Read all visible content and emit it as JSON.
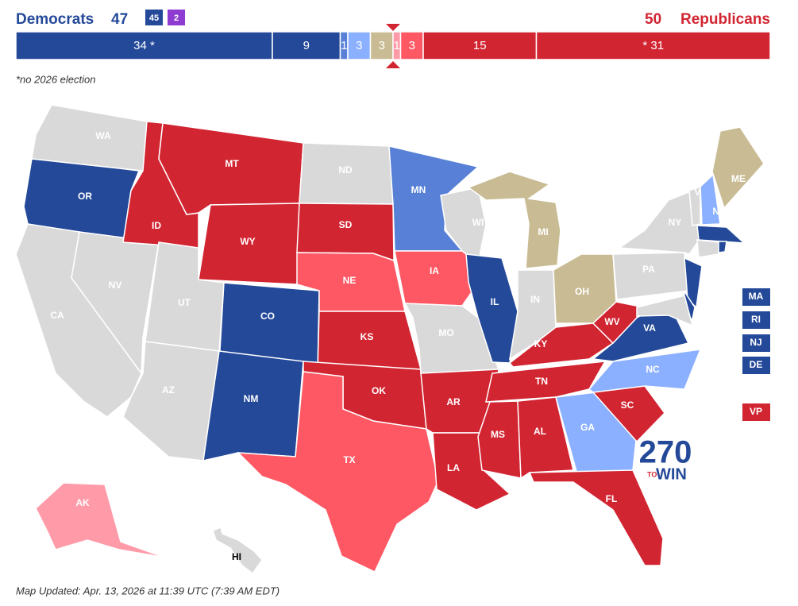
{
  "header": {
    "dem_label": "Democrats",
    "dem_total": 47,
    "dem_badges": [
      {
        "text": "45",
        "color": "#244999"
      },
      {
        "text": "2",
        "color": "#8e3bd1"
      }
    ],
    "rep_total": 50,
    "rep_label": "Republicans"
  },
  "bar": {
    "segments": [
      {
        "value": 34,
        "label": "34 *",
        "color": "#244999"
      },
      {
        "value": 9,
        "label": "9",
        "color": "#244999"
      },
      {
        "value": 1,
        "label": "1",
        "color": "#5780d6"
      },
      {
        "value": 3,
        "label": "3",
        "color": "#8bb0ff"
      },
      {
        "value": 3,
        "label": "3",
        "color": "#c9bc94"
      },
      {
        "value": 1,
        "label": "1",
        "color": "#ff9aa8"
      },
      {
        "value": 3,
        "label": "3",
        "color": "#ff5865"
      },
      {
        "value": 15,
        "label": "15",
        "color": "#d22532"
      },
      {
        "value": 31,
        "label": "* 31",
        "color": "#d22532"
      }
    ],
    "note": "*no 2026 election"
  },
  "states": [
    {
      "label": "WA",
      "color": "#d9d9d9"
    },
    {
      "label": "OR",
      "color": "#244999"
    },
    {
      "label": "CA",
      "color": "#d9d9d9"
    },
    {
      "label": "NV",
      "color": "#d9d9d9"
    },
    {
      "label": "ID",
      "color": "#d22532"
    },
    {
      "label": "MT",
      "color": "#d22532"
    },
    {
      "label": "WY",
      "color": "#d22532"
    },
    {
      "label": "UT",
      "color": "#d9d9d9"
    },
    {
      "label": "AZ",
      "color": "#d9d9d9"
    },
    {
      "label": "CO",
      "color": "#244999"
    },
    {
      "label": "NM",
      "color": "#244999"
    },
    {
      "label": "ND",
      "color": "#d9d9d9"
    },
    {
      "label": "SD",
      "color": "#d22532"
    },
    {
      "label": "NE",
      "color": "#ff5865"
    },
    {
      "label": "KS",
      "color": "#d22532"
    },
    {
      "label": "OK",
      "color": "#d22532"
    },
    {
      "label": "TX",
      "color": "#ff5865"
    },
    {
      "label": "MN",
      "color": "#5780d6"
    },
    {
      "label": "IA",
      "color": "#ff5865"
    },
    {
      "label": "MO",
      "color": "#d9d9d9"
    },
    {
      "label": "AR",
      "color": "#d22532"
    },
    {
      "label": "LA",
      "color": "#d22532"
    },
    {
      "label": "WI",
      "color": "#d9d9d9"
    },
    {
      "label": "IL",
      "color": "#244999"
    },
    {
      "label": "MI",
      "color": "#c9bc94"
    },
    {
      "label": "IN",
      "color": "#d9d9d9"
    },
    {
      "label": "OH",
      "color": "#c9bc94"
    },
    {
      "label": "KY",
      "color": "#d22532"
    },
    {
      "label": "TN",
      "color": "#d22532"
    },
    {
      "label": "MS",
      "color": "#d22532"
    },
    {
      "label": "AL",
      "color": "#d22532"
    },
    {
      "label": "GA",
      "color": "#8bb0ff"
    },
    {
      "label": "FL",
      "color": "#d22532"
    },
    {
      "label": "SC",
      "color": "#d22532"
    },
    {
      "label": "NC",
      "color": "#8bb0ff"
    },
    {
      "label": "VA",
      "color": "#244999"
    },
    {
      "label": "WV",
      "color": "#d22532"
    },
    {
      "label": "PA",
      "color": "#d9d9d9"
    },
    {
      "label": "NY",
      "color": "#d9d9d9"
    },
    {
      "color": "#244999"
    },
    {
      "color": "#244999"
    },
    {
      "color": "#d9d9d9"
    },
    {
      "label": "VT",
      "color": "#d9d9d9"
    },
    {
      "label": "NH",
      "color": "#8bb0ff"
    },
    {
      "label": "ME",
      "color": "#c9bc94"
    },
    {
      "color": "#244999"
    },
    {
      "color": "#d9d9d9"
    },
    {
      "color": "#244999"
    },
    {
      "label": "AK",
      "color": "#ff9aa8"
    },
    {
      "label": "HI",
      "color": "#d9d9d9"
    }
  ],
  "side_boxes": [
    {
      "label": "MA",
      "color": "#244999"
    },
    {
      "label": "RI",
      "color": "#244999"
    },
    {
      "label": "NJ",
      "color": "#244999"
    },
    {
      "label": "DE",
      "color": "#244999"
    },
    {
      "label": "VP",
      "color": "#d22532"
    }
  ],
  "logo": {
    "number": "270",
    "to": "TO",
    "win": "WIN"
  },
  "footer": "Map Updated: Apr. 13, 2026 at 11:39 UTC (7:39 AM EDT)"
}
